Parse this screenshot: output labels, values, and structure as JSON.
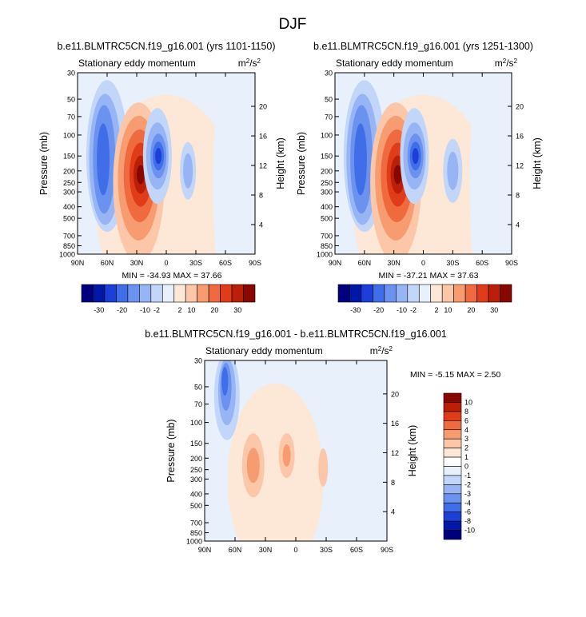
{
  "figure": {
    "title": "DJF"
  },
  "chart_data": [
    {
      "type": "contour",
      "title": "b.e11.BLMTRC5CN.f19_g16.001 (yrs 1101-1150)",
      "left_string": "Stationary eddy momentum",
      "units_base": "m",
      "units_sup1": "2",
      "units_mid": "/s",
      "units_sup2": "2",
      "ylabel": "Pressure (mb)",
      "ylabel_right": "Height (km)",
      "x_ticks": [
        "90N",
        "60N",
        "30N",
        "0",
        "30S",
        "60S",
        "90S"
      ],
      "y_ticks": [
        30,
        50,
        70,
        100,
        150,
        200,
        250,
        300,
        400,
        500,
        700,
        850,
        1000
      ],
      "height_ticks": [
        20,
        16,
        12,
        8,
        4
      ],
      "stats": "MIN = -34.93  MAX =  37.66",
      "levels": [
        -30,
        -20,
        -10,
        -2,
        2,
        10,
        20,
        30
      ],
      "features": [
        {
          "sign": "negative",
          "lat": 63,
          "p": 150,
          "peak": -30
        },
        {
          "sign": "positive",
          "lat": 26,
          "p": 220,
          "peak": 37.66
        },
        {
          "sign": "negative",
          "lat": 8,
          "p": 150,
          "peak": -34.93
        },
        {
          "sign": "negative",
          "lat": -20,
          "p": 200,
          "peak": -8
        }
      ]
    },
    {
      "type": "contour",
      "title": "b.e11.BLMTRC5CN.f19_g16.001 (yrs 1251-1300)",
      "left_string": "Stationary eddy momentum",
      "units_base": "m",
      "units_sup1": "2",
      "units_mid": "/s",
      "units_sup2": "2",
      "ylabel": "Pressure (mb)",
      "ylabel_right": "Height (km)",
      "x_ticks": [
        "90N",
        "60N",
        "30N",
        "0",
        "30S",
        "60S",
        "90S"
      ],
      "y_ticks": [
        30,
        50,
        70,
        100,
        150,
        200,
        250,
        300,
        400,
        500,
        700,
        850,
        1000
      ],
      "height_ticks": [
        20,
        16,
        12,
        8,
        4
      ],
      "stats": "MIN = -37.21  MAX =  37.63",
      "levels": [
        -30,
        -20,
        -10,
        -2,
        2,
        10,
        20,
        30
      ],
      "features": [
        {
          "sign": "negative",
          "lat": 63,
          "p": 150,
          "peak": -30
        },
        {
          "sign": "positive",
          "lat": 26,
          "p": 220,
          "peak": 37.63
        },
        {
          "sign": "negative",
          "lat": 8,
          "p": 150,
          "peak": -37.21
        },
        {
          "sign": "negative",
          "lat": -30,
          "p": 200,
          "peak": -8
        }
      ]
    },
    {
      "type": "contour",
      "title": "b.e11.BLMTRC5CN.f19_g16.001 - b.e11.BLMTRC5CN.f19_g16.001",
      "left_string": "Stationary eddy momentum",
      "units_base": "m",
      "units_sup1": "2",
      "units_mid": "/s",
      "units_sup2": "2",
      "ylabel": "Pressure (mb)",
      "ylabel_right": "Height (km)",
      "x_ticks": [
        "90N",
        "60N",
        "30N",
        "0",
        "30S",
        "60S",
        "90S"
      ],
      "y_ticks": [
        30,
        50,
        70,
        100,
        150,
        200,
        250,
        300,
        400,
        500,
        700,
        850,
        1000
      ],
      "height_ticks": [
        20,
        16,
        12,
        8,
        4
      ],
      "stats": "MIN = -5.15  MAX =  2.50",
      "levels": [
        -10,
        -8,
        -6,
        -4,
        -3,
        -2,
        -1,
        0,
        1,
        2,
        3,
        4,
        6,
        8,
        10
      ],
      "features": [
        {
          "sign": "negative",
          "lat": 68,
          "p": 50,
          "peak": -5.15
        },
        {
          "sign": "positive",
          "lat": 42,
          "p": 220,
          "peak": 2.5
        },
        {
          "sign": "positive",
          "lat": 8,
          "p": 200,
          "peak": 2.0
        },
        {
          "sign": "positive",
          "lat": -27,
          "p": 230,
          "peak": 1.5
        }
      ]
    }
  ],
  "colorbars": [
    {
      "labels": [
        "-30",
        "-20",
        "-10",
        "-2",
        "2",
        "10",
        "20",
        "30"
      ],
      "colors": [
        "#00007f",
        "#0018a8",
        "#1b3fd8",
        "#3f6ee8",
        "#6c92f0",
        "#97b4f5",
        "#c2d6fa",
        "#e8f0fc",
        "#fde7d6",
        "#fbc7a8",
        "#f79c70",
        "#f06a40",
        "#e13c1a",
        "#bc1f08",
        "#880800"
      ]
    },
    {
      "labels": [
        "-30",
        "-20",
        "-10",
        "-2",
        "2",
        "10",
        "20",
        "30"
      ],
      "colors": [
        "#00007f",
        "#0018a8",
        "#1b3fd8",
        "#3f6ee8",
        "#6c92f0",
        "#97b4f5",
        "#c2d6fa",
        "#e8f0fc",
        "#fde7d6",
        "#fbc7a8",
        "#f79c70",
        "#f06a40",
        "#e13c1a",
        "#bc1f08",
        "#880800"
      ]
    },
    {
      "labels": [
        "10",
        "8",
        "6",
        "4",
        "3",
        "2",
        "1",
        "0",
        "-1",
        "-2",
        "-3",
        "-4",
        "-6",
        "-8",
        "-10"
      ],
      "colors": [
        "#880800",
        "#bc1f08",
        "#e13c1a",
        "#f06a40",
        "#f79c70",
        "#fbc7a8",
        "#fde7d6",
        "#ffffff",
        "#e8f0fc",
        "#c2d6fa",
        "#97b4f5",
        "#6c92f0",
        "#3f6ee8",
        "#1b3fd8",
        "#0018a8",
        "#00007f"
      ]
    }
  ]
}
